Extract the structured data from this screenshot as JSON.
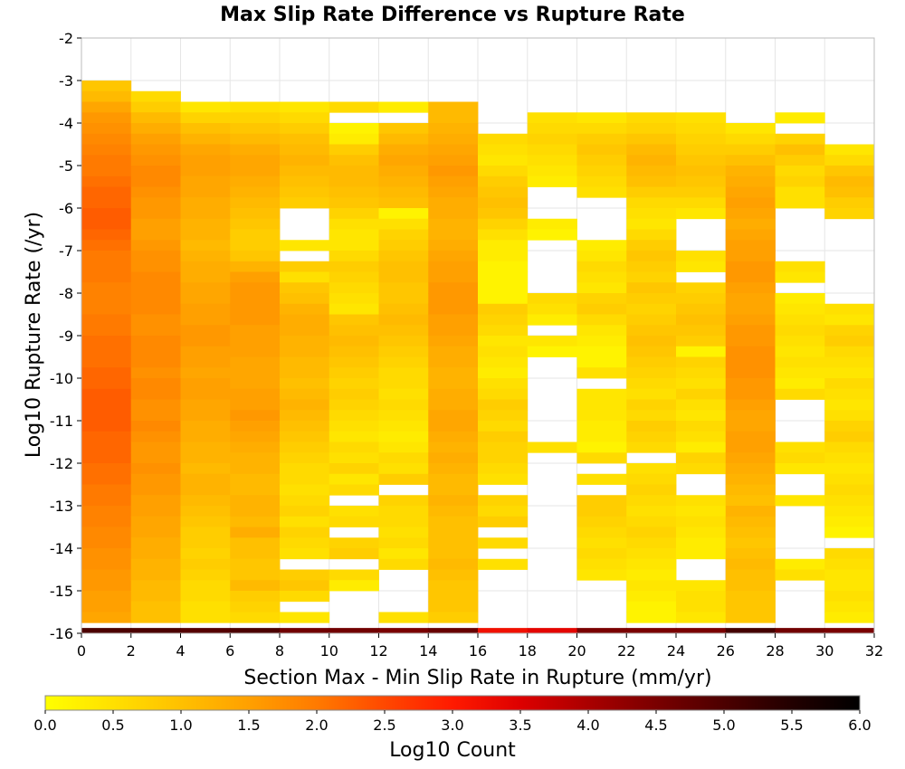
{
  "chart_data": {
    "type": "heatmap",
    "title": "Max Slip Rate Difference vs Rupture Rate",
    "xlabel": "Section Max - Min Slip Rate in Rupture (mm/yr)",
    "ylabel": "Log10 Rupture Rate (/yr)",
    "xlim": [
      0,
      32
    ],
    "ylim": [
      -16,
      -2
    ],
    "x_ticks": [
      "0",
      "2",
      "4",
      "6",
      "8",
      "10",
      "12",
      "14",
      "16",
      "18",
      "20",
      "22",
      "24",
      "26",
      "28",
      "30",
      "32"
    ],
    "y_ticks": [
      "-2",
      "-3",
      "-4",
      "-5",
      "-6",
      "-7",
      "-8",
      "-9",
      "-10",
      "-11",
      "-12",
      "-13",
      "-14",
      "-15",
      "-16"
    ],
    "grid": true,
    "x_bin_width": 2,
    "y_bin_height": 0.25,
    "x_bin_starts": [
      0,
      2,
      4,
      6,
      8,
      10,
      12,
      14,
      16,
      18,
      20,
      22,
      24,
      26,
      28,
      30
    ],
    "colorbar": {
      "label": "Log10 Count",
      "min": 0.0,
      "max": 6.0,
      "ticks": [
        "0.0",
        "0.5",
        "1.0",
        "1.5",
        "2.0",
        "2.5",
        "3.0",
        "3.5",
        "4.0",
        "4.5",
        "5.0",
        "5.5",
        "6.0"
      ],
      "colors": [
        "#ffff00",
        "#ffe000",
        "#ffc000",
        "#ffa000",
        "#ff7a00",
        "#ff4800",
        "#ff1a00",
        "#dd0000",
        "#aa0000",
        "#7a0000",
        "#4c0000",
        "#220000",
        "#000000"
      ]
    },
    "columns": [
      {
        "x": 0,
        "top": -3.0,
        "values": [
          0.9,
          1.1,
          1.4,
          1.6,
          1.7,
          1.8,
          1.9,
          2.0,
          2.0,
          2.1,
          2.2,
          2.2,
          2.3,
          2.3,
          2.2,
          2.1,
          2.0,
          2.0,
          2.0,
          1.9,
          1.9,
          1.9,
          2.0,
          2.0,
          2.1,
          2.1,
          2.1,
          2.2,
          2.2,
          2.3,
          2.3,
          2.3,
          2.3,
          2.2,
          2.2,
          2.2,
          2.1,
          2.1,
          2.0,
          2.0,
          1.9,
          1.9,
          1.8,
          1.8,
          1.7,
          1.7,
          1.6,
          1.6,
          1.5,
          1.5,
          1.4,
          1.4
        ]
      },
      {
        "x": 2,
        "top": -3.25,
        "values": [
          0.6,
          0.8,
          1.1,
          1.3,
          1.5,
          1.6,
          1.7,
          1.8,
          1.8,
          1.7,
          1.6,
          1.6,
          1.5,
          1.5,
          1.6,
          1.7,
          1.7,
          1.8,
          1.8,
          1.8,
          1.8,
          1.7,
          1.7,
          1.8,
          1.8,
          1.8,
          1.7,
          1.8,
          1.8,
          1.7,
          1.7,
          1.8,
          1.7,
          1.6,
          1.6,
          1.7,
          1.6,
          1.6,
          1.5,
          1.5,
          1.4,
          1.4,
          1.3,
          1.3,
          1.2,
          1.2,
          1.1,
          1.1,
          1.0,
          1.0,
          0.9
        ]
      },
      {
        "x": 4,
        "top": -3.5,
        "values": [
          0.4,
          0.7,
          1.0,
          1.2,
          1.4,
          1.5,
          1.5,
          1.4,
          1.4,
          1.3,
          1.3,
          1.2,
          1.2,
          1.1,
          1.2,
          1.3,
          1.3,
          1.4,
          1.4,
          1.5,
          1.5,
          1.6,
          1.6,
          1.5,
          1.5,
          1.4,
          1.5,
          1.5,
          1.4,
          1.4,
          1.3,
          1.3,
          1.2,
          1.2,
          1.1,
          1.2,
          1.2,
          1.1,
          1.0,
          0.9,
          0.8,
          0.8,
          0.7,
          0.8,
          0.7,
          0.6,
          0.6,
          0.5,
          0.5,
          0.5
        ]
      },
      {
        "x": 6,
        "top": -3.5,
        "values": [
          0.5,
          0.7,
          0.9,
          1.1,
          1.3,
          1.4,
          1.4,
          1.3,
          1.2,
          1.1,
          1.0,
          0.9,
          0.8,
          0.8,
          0.9,
          1.2,
          1.5,
          1.6,
          1.6,
          1.6,
          1.6,
          1.5,
          1.5,
          1.5,
          1.4,
          1.4,
          1.4,
          1.5,
          1.5,
          1.6,
          1.5,
          1.4,
          1.3,
          1.2,
          1.2,
          1.1,
          1.1,
          1.2,
          1.2,
          1.1,
          1.3,
          1.0,
          1.0,
          0.9,
          0.9,
          1.1,
          0.8,
          0.7,
          0.6,
          0.5
        ]
      },
      {
        "x": 8,
        "top": -3.5,
        "values": [
          0.4,
          0.6,
          0.8,
          1.0,
          1.1,
          1.2,
          1.1,
          1.0,
          0.9,
          0.8,
          null,
          null,
          null,
          0.4,
          null,
          0.8,
          0.5,
          0.9,
          1.0,
          1.2,
          1.3,
          1.3,
          1.2,
          1.2,
          1.1,
          1.1,
          1.0,
          1.1,
          1.2,
          1.1,
          1.0,
          0.9,
          0.8,
          0.7,
          0.6,
          0.6,
          0.5,
          0.6,
          0.7,
          0.5,
          0.7,
          0.6,
          0.5,
          null,
          0.8,
          0.9,
          0.6,
          null,
          0.4,
          null
        ]
      },
      {
        "x": 10,
        "top": -3.5,
        "values": [
          0.6,
          null,
          0.2,
          0.3,
          0.8,
          1.0,
          1.1,
          1.1,
          1.0,
          0.9,
          0.7,
          0.5,
          0.4,
          0.4,
          0.6,
          0.8,
          0.7,
          0.6,
          0.5,
          0.4,
          0.9,
          1.0,
          1.1,
          1.0,
          0.9,
          0.8,
          0.7,
          0.8,
          0.7,
          0.6,
          0.5,
          0.4,
          0.6,
          0.5,
          0.7,
          0.4,
          0.6,
          null,
          0.5,
          0.6,
          null,
          0.7,
          0.8,
          null,
          0.6,
          0.3,
          null,
          null,
          null,
          null
        ]
      },
      {
        "x": 12,
        "top": -3.5,
        "values": [
          0.3,
          null,
          0.9,
          1.1,
          1.3,
          1.4,
          1.3,
          1.2,
          1.1,
          1.0,
          0.2,
          0.5,
          0.7,
          0.8,
          0.9,
          1.0,
          1.0,
          0.9,
          0.9,
          1.0,
          1.1,
          1.0,
          0.9,
          0.8,
          0.7,
          0.6,
          0.6,
          0.5,
          0.6,
          0.5,
          0.4,
          0.3,
          0.4,
          0.6,
          0.5,
          0.8,
          null,
          0.7,
          0.6,
          0.6,
          0.5,
          0.6,
          0.4,
          0.6,
          null,
          null,
          null,
          null,
          0.5,
          null
        ]
      },
      {
        "x": 14,
        "top": -3.5,
        "values": [
          1.1,
          1.1,
          1.2,
          1.3,
          1.4,
          1.5,
          1.6,
          1.5,
          1.4,
          1.3,
          1.3,
          1.2,
          1.2,
          1.3,
          1.4,
          1.5,
          1.5,
          1.6,
          1.6,
          1.6,
          1.5,
          1.5,
          1.4,
          1.3,
          1.3,
          1.2,
          1.2,
          1.3,
          1.3,
          1.4,
          1.4,
          1.3,
          1.2,
          1.3,
          1.2,
          1.1,
          1.1,
          1.2,
          1.1,
          1.0,
          1.0,
          1.0,
          1.0,
          1.1,
          1.0,
          0.9,
          0.9,
          0.9,
          0.8,
          0.7
        ]
      },
      {
        "x": 16,
        "top": -4.25,
        "values": [
          0.6,
          0.5,
          0.4,
          0.6,
          0.8,
          0.9,
          1.0,
          0.9,
          0.7,
          0.5,
          0.3,
          0.3,
          0.2,
          0.2,
          0.2,
          0.2,
          0.8,
          0.7,
          0.6,
          0.4,
          0.5,
          0.4,
          0.3,
          0.5,
          0.6,
          0.8,
          0.7,
          0.6,
          0.8,
          0.7,
          0.7,
          0.6,
          0.5,
          null,
          0.7,
          0.6,
          0.8,
          null,
          0.6,
          null,
          0.5,
          null,
          null,
          null,
          null,
          null,
          null,
          null
        ]
      },
      {
        "x": 18,
        "top": -3.75,
        "values": [
          0.5,
          0.6,
          0.7,
          0.6,
          0.5,
          0.4,
          0.3,
          null,
          null,
          null,
          0.3,
          0.2,
          null,
          null,
          null,
          null,
          null,
          0.6,
          0.5,
          0.3,
          null,
          0.4,
          0.2,
          null,
          null,
          null,
          null,
          null,
          null,
          null,
          null,
          0.5,
          null,
          null,
          null,
          null,
          null,
          null,
          null,
          null,
          null,
          null,
          null,
          null,
          null,
          null,
          null,
          null,
          null
        ]
      },
      {
        "x": 20,
        "top": -3.75,
        "values": [
          0.4,
          0.6,
          0.8,
          0.9,
          0.8,
          0.7,
          0.6,
          0.5,
          null,
          null,
          null,
          null,
          0.3,
          0.4,
          0.6,
          0.5,
          0.4,
          0.7,
          0.8,
          0.6,
          0.4,
          0.3,
          0.2,
          0.2,
          0.5,
          null,
          0.4,
          0.4,
          0.4,
          0.3,
          0.3,
          0.2,
          0.6,
          null,
          0.5,
          null,
          0.8,
          0.8,
          0.7,
          0.6,
          0.5,
          0.6,
          0.5,
          0.4,
          null,
          null,
          null,
          null,
          null,
          null
        ]
      },
      {
        "x": 22,
        "top": -3.75,
        "values": [
          0.6,
          0.7,
          0.9,
          1.1,
          1.2,
          1.1,
          1.0,
          0.8,
          0.6,
          0.5,
          0.4,
          0.6,
          0.8,
          0.9,
          0.8,
          0.7,
          0.9,
          0.8,
          0.7,
          0.8,
          0.9,
          1.0,
          0.9,
          0.8,
          0.7,
          0.6,
          0.5,
          0.7,
          0.6,
          0.8,
          0.7,
          0.6,
          null,
          0.5,
          0.6,
          0.7,
          0.6,
          0.5,
          0.6,
          0.7,
          0.6,
          0.5,
          0.4,
          0.3,
          0.4,
          0.3,
          0.2,
          0.2,
          0.3,
          0.3
        ]
      },
      {
        "x": 24,
        "top": -3.75,
        "values": [
          0.5,
          0.6,
          0.7,
          0.8,
          0.9,
          1.0,
          0.9,
          0.8,
          0.6,
          0.4,
          null,
          null,
          null,
          0.5,
          0.4,
          null,
          0.7,
          0.8,
          0.9,
          1.0,
          0.9,
          0.8,
          0.2,
          0.7,
          0.6,
          0.5,
          0.7,
          0.5,
          0.4,
          0.6,
          0.5,
          0.3,
          0.7,
          0.6,
          null,
          null,
          0.5,
          0.4,
          0.5,
          0.4,
          0.3,
          0.3,
          null,
          null,
          0.4,
          0.5,
          0.5,
          0.4,
          0.3,
          0.3
        ]
      },
      {
        "x": 26,
        "top": -4.0,
        "values": [
          0.4,
          0.6,
          0.8,
          1.0,
          1.2,
          1.3,
          1.4,
          1.5,
          1.4,
          1.3,
          1.4,
          1.5,
          1.5,
          1.6,
          1.6,
          1.5,
          1.4,
          1.4,
          1.5,
          1.6,
          1.6,
          1.7,
          1.7,
          1.7,
          1.6,
          1.6,
          1.5,
          1.4,
          1.4,
          1.5,
          1.5,
          1.4,
          1.3,
          1.2,
          1.1,
          1.0,
          1.2,
          1.1,
          1.0,
          0.9,
          1.0,
          1.1,
          1.0,
          1.0,
          0.9,
          0.9,
          0.9,
          0.8
        ]
      },
      {
        "x": 28,
        "top": -3.75,
        "values": [
          0.3,
          null,
          0.7,
          1.0,
          0.8,
          0.6,
          0.7,
          0.5,
          0.5,
          null,
          null,
          null,
          null,
          null,
          0.5,
          0.4,
          null,
          0.3,
          0.4,
          0.5,
          0.6,
          0.5,
          0.4,
          0.5,
          0.4,
          0.3,
          0.6,
          null,
          null,
          null,
          null,
          0.5,
          0.6,
          0.4,
          null,
          null,
          0.4,
          null,
          null,
          null,
          null,
          null,
          0.3,
          0.5,
          null,
          null,
          null,
          null,
          0.4,
          0.3
        ]
      },
      {
        "x": 30,
        "top": -4.5,
        "values": [
          0.4,
          0.6,
          0.9,
          1.1,
          1.0,
          0.8,
          0.7,
          null,
          null,
          null,
          null,
          null,
          null,
          null,
          null,
          0.5,
          0.4,
          0.7,
          0.8,
          0.6,
          0.5,
          0.4,
          0.6,
          0.5,
          0.4,
          0.5,
          0.7,
          0.8,
          0.6,
          0.5,
          0.4,
          0.5,
          0.6,
          0.5,
          0.4,
          0.3,
          0.2,
          null,
          0.6,
          0.5,
          0.4,
          0.4,
          0.5,
          0.4,
          0.3,
          0.3
        ]
      }
    ],
    "bottom_row": {
      "y": -16,
      "values": [
        5.0,
        5.0,
        4.9,
        5.0,
        4.6,
        4.6,
        4.5,
        4.7,
        3.2,
        3.4,
        4.5,
        4.5,
        4.5,
        5.1,
        4.6,
        4.5
      ]
    }
  }
}
